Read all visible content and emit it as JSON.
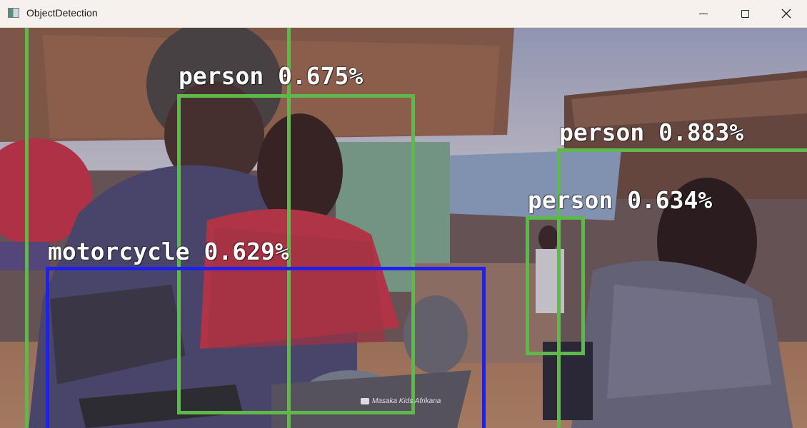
{
  "window": {
    "title": "ObjectDetection",
    "controls": {
      "minimize": "minimize",
      "maximize": "maximize",
      "close": "close"
    }
  },
  "detections": [
    {
      "id": "person-1",
      "label": "person 0.675%",
      "color": "#5fb84c"
    },
    {
      "id": "person-2",
      "label": "person 0.883%",
      "color": "#5fb84c"
    },
    {
      "id": "person-3",
      "label": "person 0.634%",
      "color": "#5fb84c"
    },
    {
      "id": "motorcycle-1",
      "label": "motorcycle 0.629%",
      "color": "#1f1ff0"
    },
    {
      "id": "person-0",
      "label": "",
      "color": "#5fb84c"
    }
  ],
  "watermark": {
    "text": "Masaka Kids Afrikana"
  }
}
